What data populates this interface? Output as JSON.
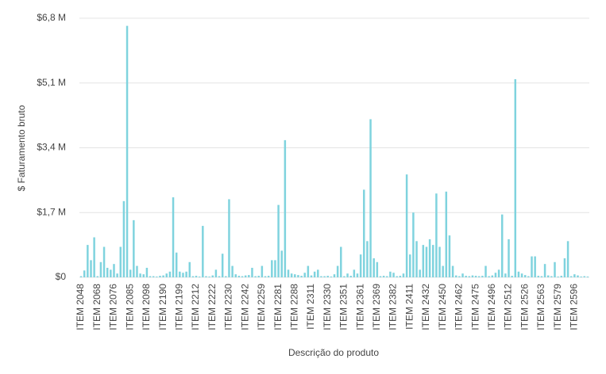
{
  "chart_data": {
    "type": "bar",
    "x_label": "Descrição do produto",
    "y_label": "$ Faturamento bruto",
    "color": "#7fd3de",
    "grid": true,
    "ylim": [
      0,
      6.8
    ],
    "yticks": [
      {
        "value": 0,
        "label": "$0"
      },
      {
        "value": 1.7,
        "label": "$1,7 M"
      },
      {
        "value": 3.4,
        "label": "$3,4 M"
      },
      {
        "value": 5.1,
        "label": "$5,1 M"
      },
      {
        "value": 6.8,
        "label": "$6,8 M"
      }
    ],
    "categories": [
      "ITEM 2048",
      null,
      null,
      null,
      null,
      "ITEM 2068",
      null,
      null,
      null,
      null,
      "ITEM 2076",
      null,
      null,
      null,
      null,
      "ITEM 2085",
      null,
      null,
      null,
      null,
      "ITEM 2098",
      null,
      null,
      null,
      null,
      "ITEM 2190",
      null,
      null,
      null,
      null,
      "ITEM 2199",
      null,
      null,
      null,
      null,
      "ITEM 2212",
      null,
      null,
      null,
      null,
      "ITEM 2222",
      null,
      null,
      null,
      null,
      "ITEM 2230",
      null,
      null,
      null,
      null,
      "ITEM 2242",
      null,
      null,
      null,
      null,
      "ITEM 2259",
      null,
      null,
      null,
      null,
      "ITEM 2281",
      null,
      null,
      null,
      null,
      "ITEM 2288",
      null,
      null,
      null,
      null,
      "ITEM 2311",
      null,
      null,
      null,
      null,
      "ITEM 2330",
      null,
      null,
      null,
      null,
      "ITEM 2351",
      null,
      null,
      null,
      null,
      "ITEM 2361",
      null,
      null,
      null,
      null,
      "ITEM 2369",
      null,
      null,
      null,
      null,
      "ITEM 2382",
      null,
      null,
      null,
      null,
      "ITEM 2411",
      null,
      null,
      null,
      null,
      "ITEM 2432",
      null,
      null,
      null,
      null,
      "ITEM 2450",
      null,
      null,
      null,
      null,
      "ITEM 2462",
      null,
      null,
      null,
      null,
      "ITEM 2475",
      null,
      null,
      null,
      null,
      "ITEM 2496",
      null,
      null,
      null,
      null,
      "ITEM 2512",
      null,
      null,
      null,
      null,
      "ITEM 2526",
      null,
      null,
      null,
      null,
      "ITEM 2563",
      null,
      null,
      null,
      null,
      "ITEM 2579",
      null,
      null,
      null,
      null,
      "ITEM 2596",
      null,
      null,
      null,
      null
    ],
    "values": [
      0.03,
      0.18,
      0.85,
      0.45,
      1.05,
      0.03,
      0.4,
      0.8,
      0.25,
      0.2,
      0.35,
      0.1,
      0.8,
      2.0,
      6.6,
      0.2,
      1.5,
      0.3,
      0.1,
      0.08,
      0.25,
      0.03,
      0.03,
      0.02,
      0.04,
      0.05,
      0.1,
      0.15,
      2.1,
      0.65,
      0.15,
      0.12,
      0.15,
      0.4,
      0.03,
      0.04,
      0.02,
      1.35,
      0.03,
      0.02,
      0.05,
      0.2,
      0.03,
      0.62,
      0.03,
      2.05,
      0.3,
      0.08,
      0.04,
      0.03,
      0.05,
      0.06,
      0.25,
      0.03,
      0.04,
      0.3,
      0.03,
      0.04,
      0.45,
      0.45,
      1.9,
      0.7,
      3.6,
      0.2,
      0.1,
      0.08,
      0.06,
      0.04,
      0.12,
      0.3,
      0.05,
      0.15,
      0.2,
      0.03,
      0.03,
      0.04,
      0.02,
      0.08,
      0.3,
      0.8,
      0.03,
      0.1,
      0.04,
      0.2,
      0.1,
      0.6,
      2.3,
      0.95,
      4.15,
      0.5,
      0.4,
      0.03,
      0.04,
      0.03,
      0.15,
      0.12,
      0.03,
      0.04,
      0.1,
      2.7,
      0.6,
      1.7,
      0.95,
      0.2,
      0.85,
      0.8,
      1.0,
      0.85,
      2.2,
      0.8,
      0.3,
      2.25,
      1.1,
      0.3,
      0.05,
      0.03,
      0.1,
      0.04,
      0.03,
      0.05,
      0.04,
      0.03,
      0.04,
      0.3,
      0.03,
      0.05,
      0.12,
      0.2,
      1.65,
      0.1,
      1.0,
      0.04,
      5.2,
      0.15,
      0.1,
      0.06,
      0.03,
      0.55,
      0.55,
      0.04,
      0.03,
      0.35,
      0.05,
      0.03,
      0.4,
      0.02,
      0.04,
      0.5,
      0.95,
      0.03,
      0.08,
      0.05,
      0.02,
      0.03,
      0.02
    ]
  }
}
